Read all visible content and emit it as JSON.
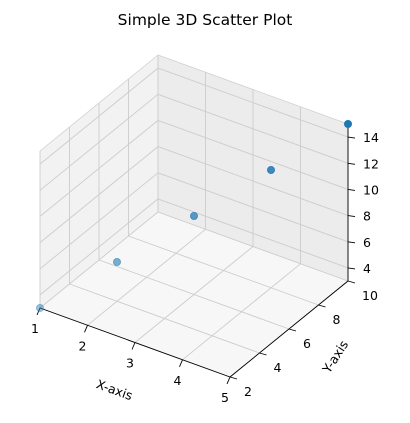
{
  "chart_data": {
    "type": "scatter",
    "title": "Simple 3D Scatter Plot",
    "xlabel": "X-axis",
    "ylabel": "Y-axis",
    "zlabel": "",
    "x": [
      1,
      2,
      3,
      4,
      5
    ],
    "y": [
      2,
      4,
      6,
      8,
      10
    ],
    "z": [
      3,
      6,
      9,
      12,
      15
    ],
    "x_ticks": [
      "1",
      "2",
      "3",
      "4",
      "5"
    ],
    "y_ticks": [
      "2",
      "4",
      "6",
      "8",
      "10"
    ],
    "z_ticks": [
      "4",
      "6",
      "8",
      "10",
      "12",
      "14"
    ],
    "marker_color": "#1f77b4",
    "grid": true
  }
}
